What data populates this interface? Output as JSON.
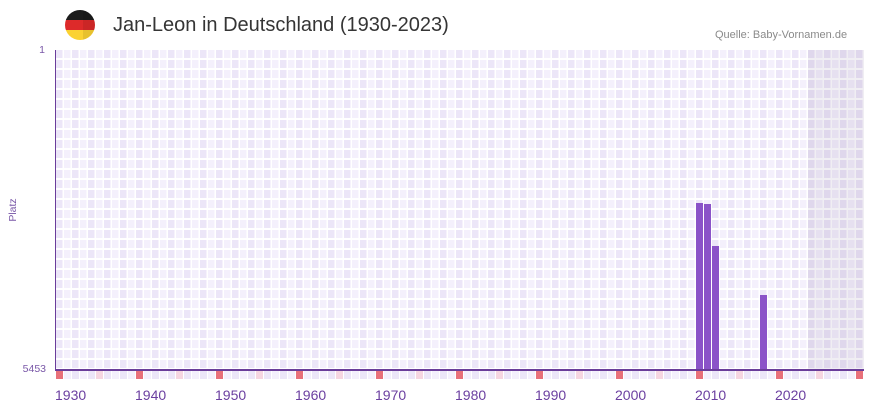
{
  "header": {
    "flag_icon": "germany-flag-icon",
    "title": "Jan-Leon in Deutschland (1930-2023)",
    "source": "Quelle: Baby-Vornamen.de"
  },
  "axes": {
    "y_title": "Platz",
    "y_top_label": "1",
    "y_bottom_label": "5453"
  },
  "colors": {
    "bar": "#8b53c8",
    "axis": "#6a3d9a",
    "decade_marker": "#e8707a",
    "half_decade_marker": "#f6d6e1",
    "column_dark": "#ece6f8",
    "column_light": "#f4f0fc",
    "label": "#6b3fa0"
  },
  "chart_data": {
    "type": "bar",
    "title": "Jan-Leon in Deutschland (1930-2023)",
    "xlabel": "",
    "ylabel": "Platz",
    "x_range": [
      1930,
      2030
    ],
    "future_shaded_from": 2024,
    "ylim": [
      1,
      5453
    ],
    "y_inverted": true,
    "tick_labels": [
      "1930",
      "1940",
      "1950",
      "1960",
      "1970",
      "1980",
      "1990",
      "2000",
      "2010",
      "2020"
    ],
    "grid": true,
    "legend": "none",
    "categories": [
      "2010",
      "2011",
      "2012",
      "2018"
    ],
    "series": [
      {
        "name": "Platz",
        "values": [
          2608,
          2625,
          3340,
          4175
        ]
      }
    ]
  }
}
